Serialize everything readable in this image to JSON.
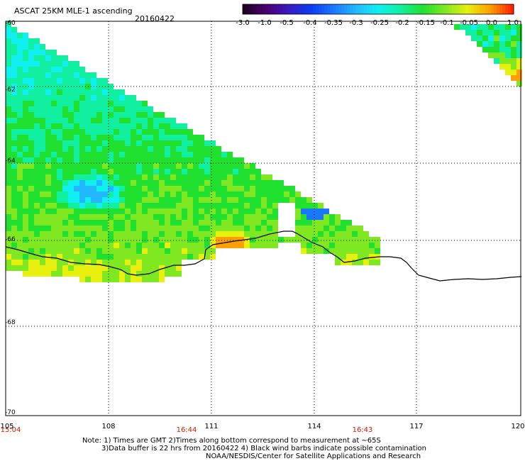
{
  "title": "ASCAT 25KM MLE-1 ascending",
  "date": "20160422",
  "colorbar": {
    "labels": [
      "-3.0",
      "-1.0",
      "-0.5",
      "-0.4",
      "-0.35",
      "-0.3",
      "-0.25",
      "-0.2",
      "-0.15",
      "-0.1",
      "-0.05",
      "0.0",
      "1.0"
    ],
    "colors": [
      "#200020",
      "#4b0070",
      "#3a1ac0",
      "#0a3cf0",
      "#1a78ff",
      "#22b8ff",
      "#10f0f0",
      "#10f0a0",
      "#20e030",
      "#80e820",
      "#e8f010",
      "#ffa000",
      "#ff2000"
    ]
  },
  "axes": {
    "lat_labels": [
      "-60",
      "-62",
      "-64",
      "-66",
      "-68",
      "-70"
    ],
    "lon_labels": [
      "105",
      "108",
      "111",
      "114",
      "117",
      "120"
    ],
    "time_labels": [
      "15:04",
      "16:44",
      "16:43"
    ]
  },
  "notes": [
    "Note: 1) Times are GMT 2)Times along bottom correspond to measurement at ~65S",
    "3)Data buffer is 22 hrs from 20160422 4) Black wind barbs indicate possible contamination",
    "NOAA/NESDIS/Center for Satellite Applications and Research"
  ]
}
